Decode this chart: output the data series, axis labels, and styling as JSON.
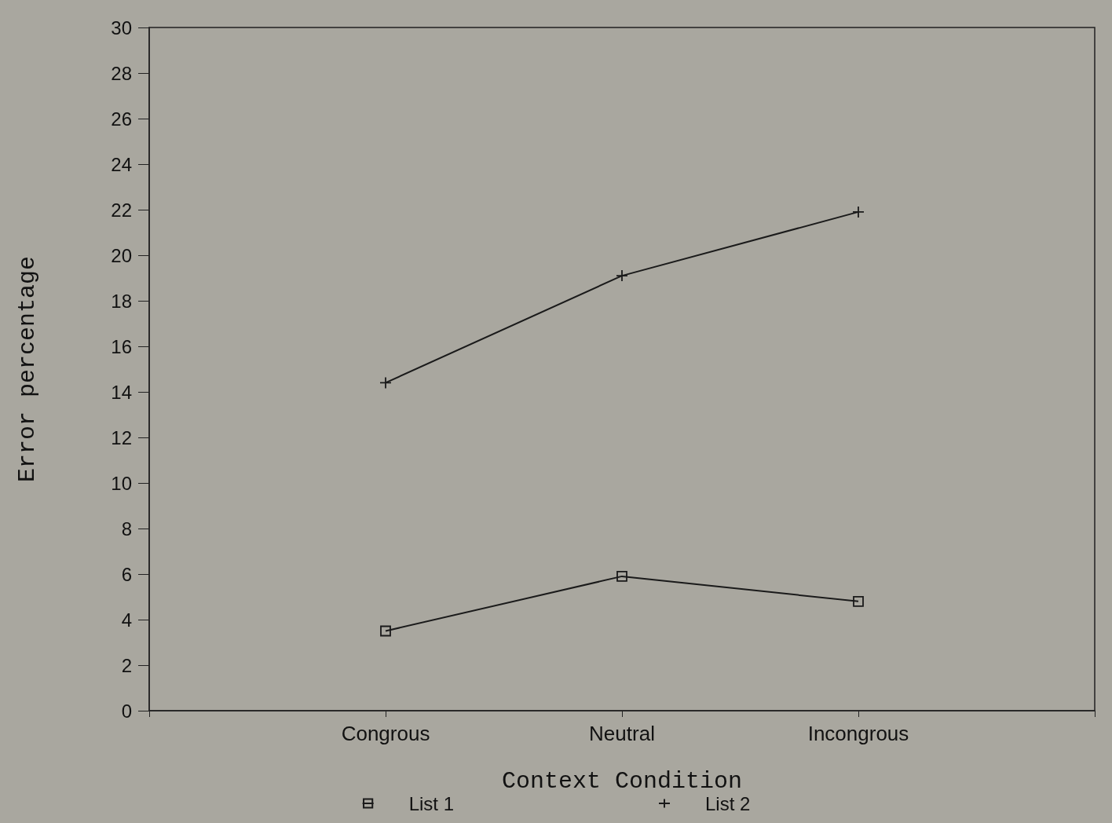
{
  "chart_data": {
    "type": "line",
    "xlabel": "Context Condition",
    "ylabel": "Error percentage",
    "categories": [
      null,
      "Congrous",
      "Neutral",
      "Incongrous",
      null
    ],
    "series": [
      {
        "name": "List 1",
        "color": "#1a1a1a",
        "marker": "square",
        "values": [
          null,
          3.5,
          5.9,
          4.8,
          null
        ]
      },
      {
        "name": "List 2",
        "color": "#1a1a1a",
        "marker": "cross",
        "values": [
          null,
          14.4,
          19.1,
          21.9,
          null
        ]
      }
    ],
    "ylim": [
      0,
      30
    ],
    "yticks": [
      0,
      2,
      4,
      6,
      8,
      10,
      12,
      14,
      16,
      18,
      20,
      22,
      24,
      26,
      28,
      30
    ],
    "grid": false,
    "legend": "bottom",
    "line_style": "solid"
  }
}
